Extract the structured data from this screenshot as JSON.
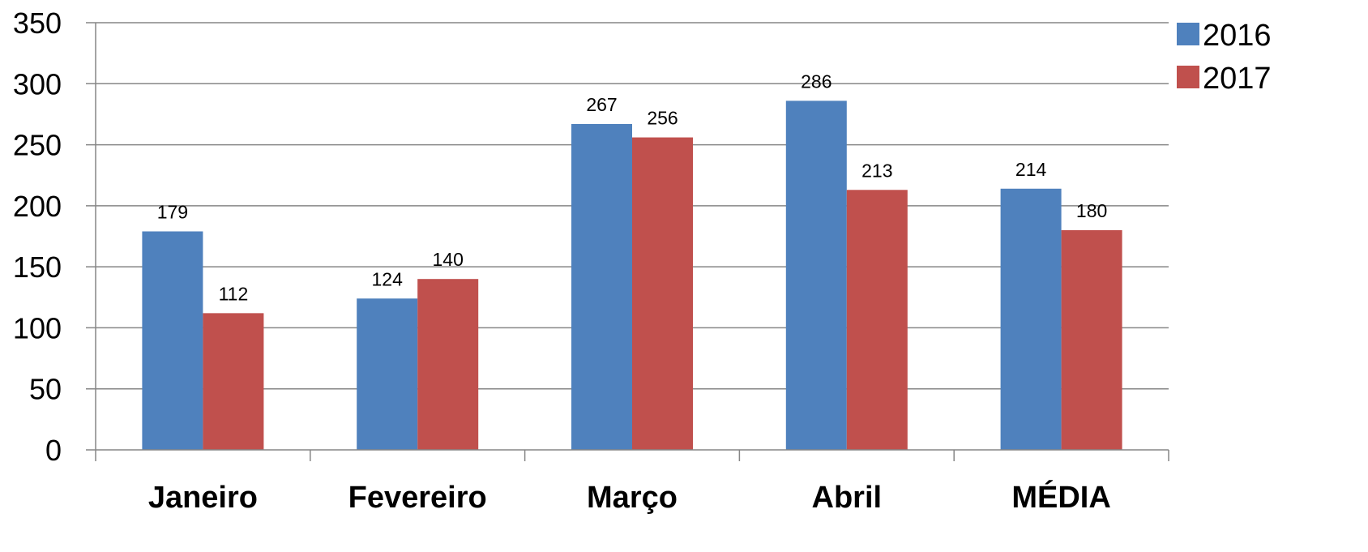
{
  "chart_data": {
    "type": "bar",
    "title": "",
    "xlabel": "",
    "ylabel": "",
    "categories": [
      "Janeiro",
      "Fevereiro",
      "Março",
      "Abril",
      "MÉDIA"
    ],
    "series": [
      {
        "name": "2016",
        "color": "#4F81BD",
        "values": [
          179,
          124,
          267,
          286,
          214
        ]
      },
      {
        "name": "2017",
        "color": "#C0504D",
        "values": [
          112,
          140,
          256,
          213,
          180
        ]
      }
    ],
    "ylim": [
      0,
      350
    ],
    "yticks": [
      "0",
      "50",
      "100",
      "150",
      "200",
      "250",
      "300",
      "350"
    ],
    "grid": true,
    "legend_position": "top-right",
    "data_labels": true
  }
}
